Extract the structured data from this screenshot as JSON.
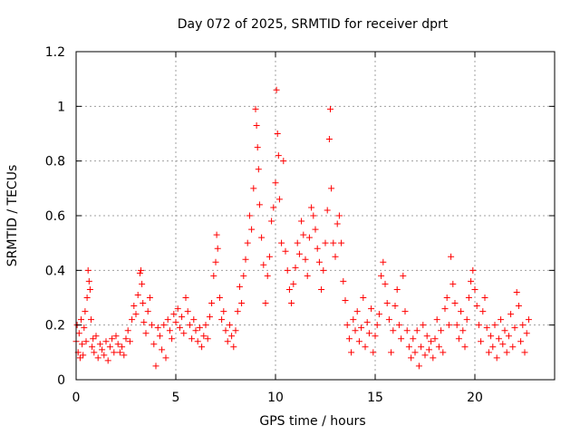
{
  "chart_data": {
    "type": "scatter",
    "title": "Day 072 of 2025, SRMTID for receiver dprt",
    "xlabel": "GPS time / hours",
    "ylabel": "SRMTID / TECUs",
    "xlim": [
      0,
      24
    ],
    "ylim": [
      0,
      1.2
    ],
    "xticks": [
      0,
      5,
      10,
      15,
      20
    ],
    "xtick_labels": [
      "0",
      "5",
      "10",
      "15",
      "20"
    ],
    "yticks": [
      0,
      0.2,
      0.4,
      0.6,
      0.8,
      1,
      1.2
    ],
    "ytick_labels": [
      "0",
      "0.2",
      "0.4",
      "0.6",
      "0.8",
      "1",
      "1.2"
    ],
    "grid": true,
    "marker": "plus",
    "color": "#ff0000",
    "series": [
      {
        "name": "dprt",
        "points": [
          [
            0.0,
            0.14
          ],
          [
            0.05,
            0.2
          ],
          [
            0.1,
            0.1
          ],
          [
            0.15,
            0.17
          ],
          [
            0.2,
            0.08
          ],
          [
            0.25,
            0.22
          ],
          [
            0.3,
            0.13
          ],
          [
            0.35,
            0.09
          ],
          [
            0.4,
            0.19
          ],
          [
            0.45,
            0.25
          ],
          [
            0.5,
            0.14
          ],
          [
            0.55,
            0.3
          ],
          [
            0.6,
            0.4
          ],
          [
            0.65,
            0.36
          ],
          [
            0.7,
            0.33
          ],
          [
            0.75,
            0.22
          ],
          [
            0.8,
            0.12
          ],
          [
            0.85,
            0.15
          ],
          [
            0.9,
            0.1
          ],
          [
            1.0,
            0.16
          ],
          [
            1.1,
            0.08
          ],
          [
            1.2,
            0.13
          ],
          [
            1.3,
            0.11
          ],
          [
            1.4,
            0.09
          ],
          [
            1.5,
            0.14
          ],
          [
            1.6,
            0.07
          ],
          [
            1.7,
            0.12
          ],
          [
            1.8,
            0.15
          ],
          [
            1.9,
            0.1
          ],
          [
            2.0,
            0.16
          ],
          [
            2.1,
            0.13
          ],
          [
            2.2,
            0.1
          ],
          [
            2.3,
            0.12
          ],
          [
            2.4,
            0.09
          ],
          [
            2.5,
            0.15
          ],
          [
            2.6,
            0.18
          ],
          [
            2.7,
            0.14
          ],
          [
            2.8,
            0.22
          ],
          [
            2.9,
            0.27
          ],
          [
            3.0,
            0.24
          ],
          [
            3.1,
            0.31
          ],
          [
            3.2,
            0.39
          ],
          [
            3.25,
            0.4
          ],
          [
            3.3,
            0.35
          ],
          [
            3.35,
            0.28
          ],
          [
            3.4,
            0.21
          ],
          [
            3.5,
            0.17
          ],
          [
            3.6,
            0.25
          ],
          [
            3.7,
            0.3
          ],
          [
            3.8,
            0.2
          ],
          [
            3.9,
            0.13
          ],
          [
            4.0,
            0.05
          ],
          [
            4.1,
            0.19
          ],
          [
            4.2,
            0.16
          ],
          [
            4.3,
            0.11
          ],
          [
            4.4,
            0.2
          ],
          [
            4.5,
            0.08
          ],
          [
            4.6,
            0.22
          ],
          [
            4.7,
            0.18
          ],
          [
            4.8,
            0.15
          ],
          [
            4.9,
            0.24
          ],
          [
            5.0,
            0.21
          ],
          [
            5.1,
            0.26
          ],
          [
            5.2,
            0.19
          ],
          [
            5.3,
            0.23
          ],
          [
            5.4,
            0.17
          ],
          [
            5.5,
            0.3
          ],
          [
            5.6,
            0.25
          ],
          [
            5.7,
            0.2
          ],
          [
            5.8,
            0.15
          ],
          [
            5.9,
            0.22
          ],
          [
            6.0,
            0.18
          ],
          [
            6.1,
            0.14
          ],
          [
            6.2,
            0.19
          ],
          [
            6.3,
            0.12
          ],
          [
            6.4,
            0.16
          ],
          [
            6.5,
            0.2
          ],
          [
            6.6,
            0.15
          ],
          [
            6.7,
            0.23
          ],
          [
            6.8,
            0.28
          ],
          [
            6.9,
            0.38
          ],
          [
            7.0,
            0.43
          ],
          [
            7.05,
            0.53
          ],
          [
            7.1,
            0.48
          ],
          [
            7.2,
            0.3
          ],
          [
            7.3,
            0.22
          ],
          [
            7.4,
            0.25
          ],
          [
            7.5,
            0.18
          ],
          [
            7.6,
            0.14
          ],
          [
            7.7,
            0.2
          ],
          [
            7.8,
            0.16
          ],
          [
            7.9,
            0.12
          ],
          [
            8.0,
            0.18
          ],
          [
            8.1,
            0.25
          ],
          [
            8.2,
            0.34
          ],
          [
            8.3,
            0.28
          ],
          [
            8.4,
            0.38
          ],
          [
            8.5,
            0.44
          ],
          [
            8.6,
            0.5
          ],
          [
            8.7,
            0.6
          ],
          [
            8.8,
            0.55
          ],
          [
            8.9,
            0.7
          ],
          [
            9.0,
            0.99
          ],
          [
            9.05,
            0.93
          ],
          [
            9.1,
            0.85
          ],
          [
            9.15,
            0.77
          ],
          [
            9.2,
            0.64
          ],
          [
            9.3,
            0.52
          ],
          [
            9.4,
            0.42
          ],
          [
            9.5,
            0.28
          ],
          [
            9.6,
            0.38
          ],
          [
            9.7,
            0.45
          ],
          [
            9.8,
            0.58
          ],
          [
            9.9,
            0.63
          ],
          [
            10.0,
            0.72
          ],
          [
            10.05,
            1.06
          ],
          [
            10.1,
            0.9
          ],
          [
            10.15,
            0.82
          ],
          [
            10.2,
            0.66
          ],
          [
            10.3,
            0.5
          ],
          [
            10.4,
            0.8
          ],
          [
            10.5,
            0.47
          ],
          [
            10.6,
            0.4
          ],
          [
            10.7,
            0.33
          ],
          [
            10.8,
            0.28
          ],
          [
            10.9,
            0.35
          ],
          [
            11.0,
            0.41
          ],
          [
            11.1,
            0.5
          ],
          [
            11.2,
            0.46
          ],
          [
            11.3,
            0.58
          ],
          [
            11.4,
            0.53
          ],
          [
            11.5,
            0.44
          ],
          [
            11.6,
            0.38
          ],
          [
            11.7,
            0.52
          ],
          [
            11.8,
            0.63
          ],
          [
            11.9,
            0.6
          ],
          [
            12.0,
            0.55
          ],
          [
            12.1,
            0.48
          ],
          [
            12.2,
            0.43
          ],
          [
            12.3,
            0.33
          ],
          [
            12.4,
            0.4
          ],
          [
            12.5,
            0.5
          ],
          [
            12.6,
            0.62
          ],
          [
            12.7,
            0.88
          ],
          [
            12.75,
            0.99
          ],
          [
            12.8,
            0.7
          ],
          [
            12.9,
            0.5
          ],
          [
            13.0,
            0.45
          ],
          [
            13.1,
            0.57
          ],
          [
            13.2,
            0.6
          ],
          [
            13.3,
            0.5
          ],
          [
            13.4,
            0.36
          ],
          [
            13.5,
            0.29
          ],
          [
            13.6,
            0.2
          ],
          [
            13.7,
            0.15
          ],
          [
            13.8,
            0.1
          ],
          [
            13.9,
            0.22
          ],
          [
            14.0,
            0.18
          ],
          [
            14.1,
            0.25
          ],
          [
            14.2,
            0.14
          ],
          [
            14.3,
            0.19
          ],
          [
            14.4,
            0.3
          ],
          [
            14.5,
            0.12
          ],
          [
            14.6,
            0.21
          ],
          [
            14.7,
            0.17
          ],
          [
            14.8,
            0.26
          ],
          [
            14.9,
            0.1
          ],
          [
            15.0,
            0.16
          ],
          [
            15.1,
            0.2
          ],
          [
            15.2,
            0.24
          ],
          [
            15.3,
            0.38
          ],
          [
            15.4,
            0.43
          ],
          [
            15.5,
            0.35
          ],
          [
            15.6,
            0.28
          ],
          [
            15.7,
            0.22
          ],
          [
            15.8,
            0.1
          ],
          [
            15.9,
            0.18
          ],
          [
            16.0,
            0.27
          ],
          [
            16.1,
            0.33
          ],
          [
            16.2,
            0.2
          ],
          [
            16.3,
            0.15
          ],
          [
            16.4,
            0.38
          ],
          [
            16.5,
            0.25
          ],
          [
            16.6,
            0.18
          ],
          [
            16.7,
            0.12
          ],
          [
            16.8,
            0.08
          ],
          [
            16.9,
            0.15
          ],
          [
            17.0,
            0.1
          ],
          [
            17.1,
            0.18
          ],
          [
            17.2,
            0.05
          ],
          [
            17.3,
            0.12
          ],
          [
            17.4,
            0.2
          ],
          [
            17.5,
            0.09
          ],
          [
            17.6,
            0.16
          ],
          [
            17.7,
            0.11
          ],
          [
            17.8,
            0.14
          ],
          [
            17.9,
            0.08
          ],
          [
            18.0,
            0.15
          ],
          [
            18.1,
            0.22
          ],
          [
            18.2,
            0.12
          ],
          [
            18.3,
            0.18
          ],
          [
            18.4,
            0.1
          ],
          [
            18.5,
            0.26
          ],
          [
            18.6,
            0.3
          ],
          [
            18.7,
            0.2
          ],
          [
            18.8,
            0.45
          ],
          [
            18.9,
            0.35
          ],
          [
            19.0,
            0.28
          ],
          [
            19.1,
            0.2
          ],
          [
            19.2,
            0.15
          ],
          [
            19.3,
            0.25
          ],
          [
            19.4,
            0.18
          ],
          [
            19.5,
            0.12
          ],
          [
            19.6,
            0.22
          ],
          [
            19.7,
            0.3
          ],
          [
            19.8,
            0.36
          ],
          [
            19.9,
            0.4
          ],
          [
            20.0,
            0.33
          ],
          [
            20.1,
            0.27
          ],
          [
            20.2,
            0.2
          ],
          [
            20.3,
            0.14
          ],
          [
            20.4,
            0.25
          ],
          [
            20.5,
            0.3
          ],
          [
            20.6,
            0.19
          ],
          [
            20.7,
            0.1
          ],
          [
            20.8,
            0.16
          ],
          [
            20.9,
            0.12
          ],
          [
            21.0,
            0.2
          ],
          [
            21.1,
            0.08
          ],
          [
            21.2,
            0.15
          ],
          [
            21.3,
            0.22
          ],
          [
            21.4,
            0.13
          ],
          [
            21.5,
            0.18
          ],
          [
            21.6,
            0.1
          ],
          [
            21.7,
            0.16
          ],
          [
            21.8,
            0.24
          ],
          [
            21.9,
            0.12
          ],
          [
            22.0,
            0.19
          ],
          [
            22.1,
            0.32
          ],
          [
            22.2,
            0.27
          ],
          [
            22.3,
            0.14
          ],
          [
            22.4,
            0.2
          ],
          [
            22.5,
            0.1
          ],
          [
            22.6,
            0.17
          ],
          [
            22.7,
            0.22
          ]
        ]
      }
    ]
  }
}
